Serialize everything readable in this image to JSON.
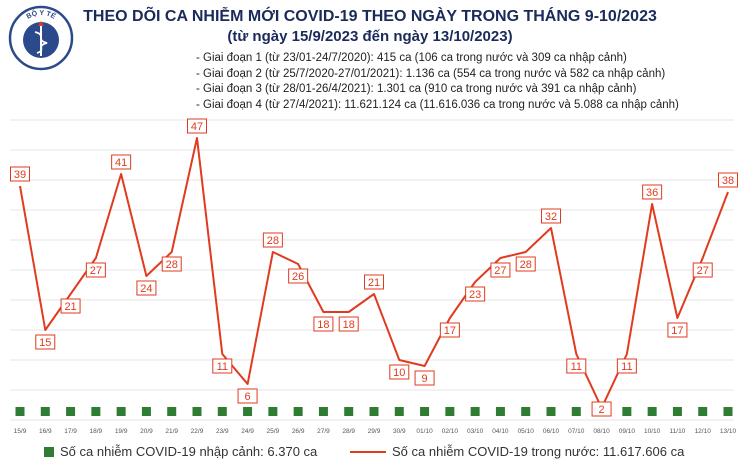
{
  "header": {
    "title": "THEO DÕI CA NHIỄM MỚI COVID-19 THEO NGÀY TRONG THÁNG 9-10/2023",
    "subtitle": "(từ ngày 15/9/2023 đến ngày 13/10/2023)",
    "logo_text": "BỘ Y TẾ"
  },
  "notes": [
    "- Giai đoạn 1 (từ 23/01-24/7/2020): 415 ca (106 ca trong nước và 309 ca nhập cảnh)",
    "- Giai đoạn 2 (từ 25/7/2020-27/01/2021): 1.136 ca (554 ca trong nước và 582 ca nhập cảnh)",
    "- Giai đoạn 3 (từ 28/01-26/4/2021): 1.301 ca (910 ca trong nước và 391 ca nhập cảnh)",
    "- Giai đoạn 4 (từ 27/4/2021): 11.621.124 ca (11.616.036 ca trong nước và 5.088 ca nhập cảnh)"
  ],
  "legend": {
    "imported_label": "Số ca nhiễm COVID-19 nhập cảnh: 6.370 ca",
    "domestic_label": "Số ca nhiễm COVID-19 trong nước: 11.617.606 ca"
  },
  "colors": {
    "line": "#e03b1f",
    "bar": "#2e7d32",
    "title": "#1a2a5a",
    "grid": "#e6e6e6",
    "logo": "#2b4a8c"
  },
  "chart_data": {
    "type": "line",
    "categories": [
      "15/9",
      "16/9",
      "17/9",
      "18/9",
      "19/9",
      "20/9",
      "21/9",
      "22/9",
      "23/9",
      "24/9",
      "25/9",
      "26/9",
      "27/9",
      "28/9",
      "29/9",
      "30/9",
      "01/10",
      "02/10",
      "03/10",
      "04/10",
      "05/10",
      "06/10",
      "07/10",
      "08/10",
      "09/10",
      "10/10",
      "11/10",
      "12/10",
      "13/10"
    ],
    "series": [
      {
        "name": "Số ca nhiễm COVID-19 trong nước: 11.617.606 ca",
        "type": "line",
        "values": [
          39,
          15,
          21,
          27,
          41,
          24,
          28,
          47,
          11,
          6,
          28,
          26,
          18,
          18,
          21,
          10,
          9,
          17,
          23,
          27,
          28,
          32,
          11,
          2,
          11,
          36,
          17,
          27,
          38
        ]
      },
      {
        "name": "Số ca nhiễm COVID-19 nhập cảnh: 6.370 ca",
        "type": "bar",
        "values": [
          0,
          0,
          0,
          0,
          0,
          0,
          0,
          0,
          0,
          0,
          0,
          0,
          0,
          0,
          0,
          0,
          0,
          0,
          0,
          0,
          0,
          0,
          0,
          0,
          0,
          0,
          0,
          0,
          0
        ]
      }
    ],
    "ylim": [
      0,
      50
    ],
    "grid": true
  }
}
